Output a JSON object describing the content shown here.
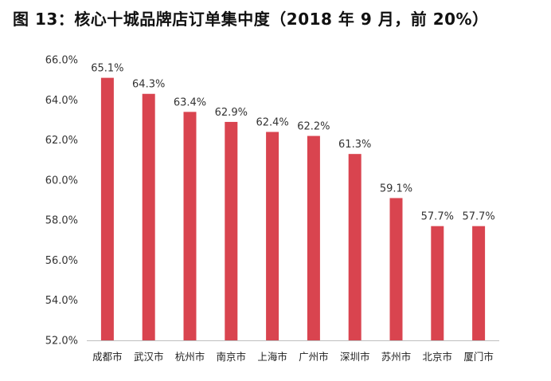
{
  "title": "图 13：核心十城品牌店订单集中度（2018 年 9 月，前 20%）",
  "chart_data": {
    "type": "bar",
    "title": "图 13：核心十城品牌店订单集中度（2018 年 9 月，前 20%）",
    "categories": [
      "成都市",
      "武汉市",
      "杭州市",
      "南京市",
      "上海市",
      "广州市",
      "深圳市",
      "苏州市",
      "北京市",
      "厦门市"
    ],
    "values": [
      65.1,
      64.3,
      63.4,
      62.9,
      62.4,
      62.2,
      61.3,
      59.1,
      57.7,
      57.7
    ],
    "data_labels": [
      "65.1%",
      "64.3%",
      "63.4%",
      "62.9%",
      "62.4%",
      "62.2%",
      "61.3%",
      "59.1%",
      "57.7%",
      "57.7%"
    ],
    "yticks": [
      52,
      54,
      56,
      58,
      60,
      62,
      64,
      66
    ],
    "ytick_labels": [
      "52.0%",
      "54.0%",
      "56.0%",
      "58.0%",
      "60.0%",
      "62.0%",
      "64.0%",
      "66.0%"
    ],
    "ylim": [
      52,
      66
    ],
    "xlabel": "",
    "ylabel": "",
    "grid": false,
    "legend": "none",
    "bar_color": "#d9444f",
    "axis_color": "#bfbfbf"
  }
}
